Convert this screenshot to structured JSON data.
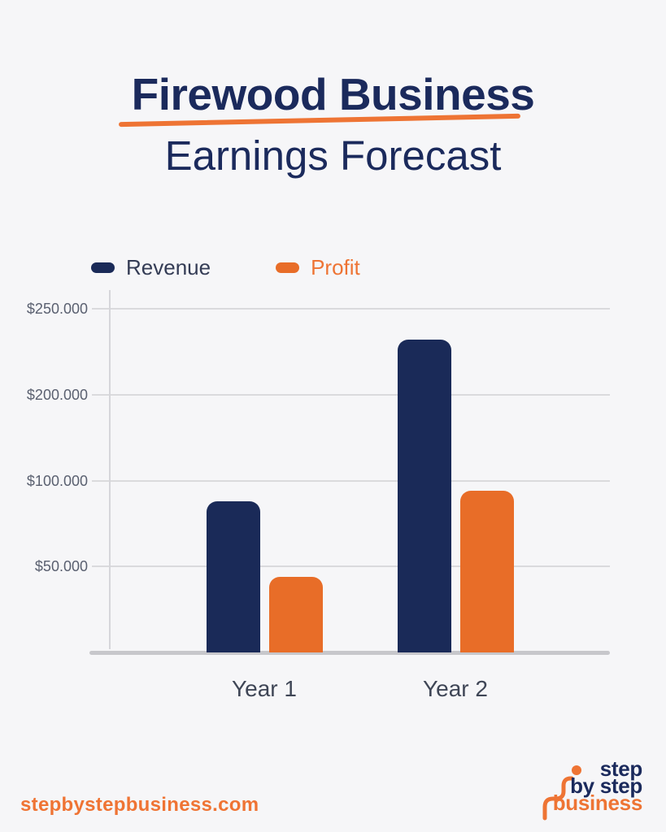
{
  "header": {
    "title_line1": "Firewood Business",
    "title_line2": "Earnings Forecast"
  },
  "legend": {
    "items": [
      {
        "label": "Revenue",
        "color": "#1a2a58"
      },
      {
        "label": "Profit",
        "color": "#e86d28"
      }
    ]
  },
  "chart_data": {
    "type": "bar",
    "title": "Firewood Business Earnings Forecast",
    "categories": [
      "Year 1",
      "Year 2"
    ],
    "series": [
      {
        "name": "Revenue",
        "color": "#1a2a58",
        "values": [
          88000,
          232000
        ]
      },
      {
        "name": "Profit",
        "color": "#e86d28",
        "values": [
          44000,
          94000
        ]
      }
    ],
    "y_tick_labels": [
      "$250.000",
      "$200.000",
      "$100.000",
      "$50.000"
    ],
    "y_tick_values": [
      250000,
      200000,
      100000,
      50000
    ],
    "y_scale_breakpoints": [
      0,
      50000,
      100000,
      200000,
      250000
    ],
    "ylim": [
      0,
      250000
    ],
    "grid": true,
    "legend_position": "top-left",
    "currency_symbol": "$"
  },
  "footer": {
    "website": "stepbystepbusiness.com",
    "logo": {
      "line1": "step",
      "line2": "by step",
      "line3": "business",
      "navy": "#1b2a5c",
      "orange": "#ee7434"
    }
  },
  "colors": {
    "background": "#f6f6f8",
    "navy": "#1a2a58",
    "orange": "#e86d28",
    "accent_orange": "#ee7434",
    "gridline": "#dadadd",
    "baseline": "#c7c7cb"
  }
}
